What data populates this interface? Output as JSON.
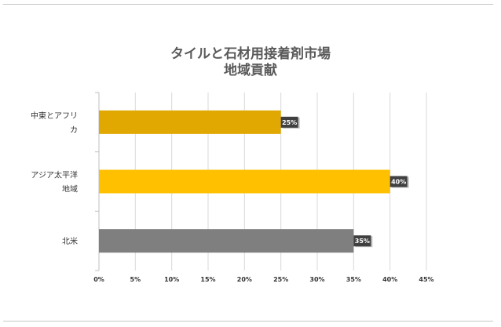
{
  "chart_data": {
    "type": "bar",
    "orientation": "horizontal",
    "title": [
      "タイルと石材用接着剤市場",
      "地域貢献"
    ],
    "categories": [
      [
        "中東とアフリ",
        "カ"
      ],
      [
        "アジア太平洋",
        "地域"
      ],
      [
        "北米"
      ]
    ],
    "values": [
      25,
      40,
      35
    ],
    "colors": [
      "#e0a800",
      "#ffc000",
      "#7f7f7f"
    ],
    "data_labels": [
      "25%",
      "40%",
      "35%"
    ],
    "x_ticks": [
      "0%",
      "5%",
      "10%",
      "15%",
      "20%",
      "25%",
      "30%",
      "35%",
      "40%",
      "45%"
    ],
    "xlim": [
      0,
      45
    ],
    "xlabel": "",
    "ylabel": "",
    "grid": "vertical",
    "legend": "none"
  }
}
